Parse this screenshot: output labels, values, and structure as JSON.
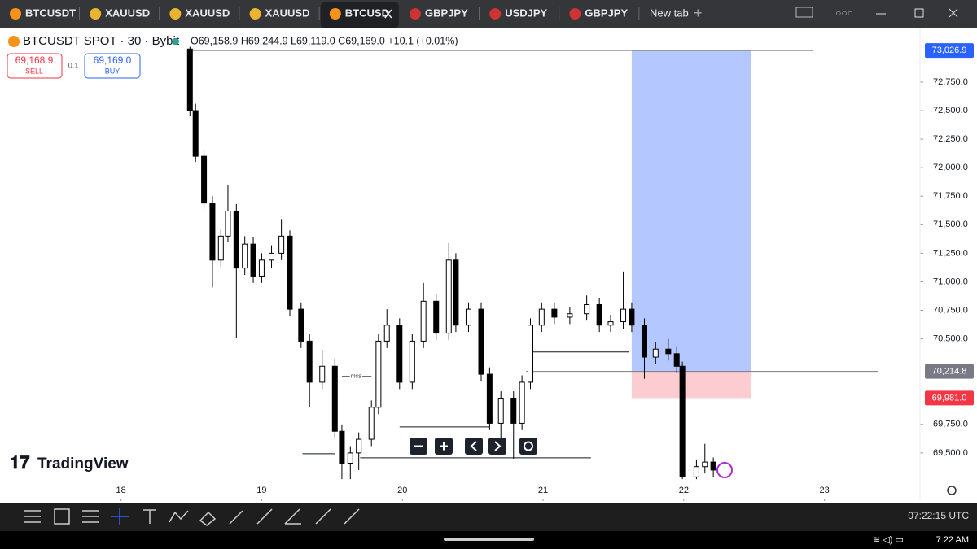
{
  "tabs": [
    {
      "label": "BTCUSDT"
    },
    {
      "label": "XAUUSD"
    },
    {
      "label": "XAUUSD"
    },
    {
      "label": "XAUUSD"
    },
    {
      "label": "BTCUSD"
    },
    {
      "label": "GBPJPY"
    },
    {
      "label": "USDJPY"
    },
    {
      "label": "GBPJPY"
    }
  ],
  "new_tab": "New tab",
  "header": {
    "symbol": "BTCUSDT SPOT · 30 · Bybit",
    "ohlc": "O69,158.9 H69,244.9 L69,119.0 C69,169.0 +10.1 (+0.01%)",
    "sell_price": "69,168.9",
    "sell": "SELL",
    "spread": "0.1",
    "buy_price": "69,169.0",
    "buy": "BUY"
  },
  "logo": "TradingView",
  "clock_utc": "07:22:15 UTC",
  "status_time": "7:22 AM",
  "chart_data": {
    "type": "candlestick",
    "xlim": [
      17.14,
      23.65
    ],
    "ylim": [
      69100,
      73213
    ],
    "xticks": [
      18,
      19,
      20,
      21,
      22,
      23
    ],
    "yticks": [
      {
        "value": 69500,
        "label": "69,500.0"
      },
      {
        "value": 69750,
        "label": "69,750.0"
      },
      {
        "value": 70500,
        "label": "70,500.0"
      },
      {
        "value": 70750,
        "label": "70,750.0"
      },
      {
        "value": 71000,
        "label": "71,000.0"
      },
      {
        "value": 71250,
        "label": "71,250.0"
      },
      {
        "value": 71500,
        "label": "71,500.0"
      },
      {
        "value": 71750,
        "label": "71,750.0"
      },
      {
        "value": 72000,
        "label": "72,000.0"
      },
      {
        "value": 72250,
        "label": "72,250.0"
      },
      {
        "value": 72500,
        "label": "72,500.0"
      },
      {
        "value": 72750,
        "label": "72,750.0"
      }
    ],
    "up_color": "#ffffff",
    "down_color": "#000000",
    "x": [
      18.49,
      18.53,
      18.59,
      18.65,
      18.71,
      18.76,
      18.82,
      18.88,
      18.94,
      19.0,
      19.07,
      19.14,
      19.2,
      19.28,
      19.34,
      19.43,
      19.52,
      19.57,
      19.63,
      19.69,
      19.78,
      19.83,
      19.89,
      19.98,
      20.07,
      20.15,
      20.24,
      20.33,
      20.38,
      20.47,
      20.56,
      20.62,
      20.7,
      20.79,
      20.85,
      20.91,
      20.99,
      21.08,
      21.19,
      21.31,
      21.4,
      21.48,
      21.57,
      21.63,
      21.72,
      21.8,
      21.89,
      21.95,
      21.99,
      22.09,
      22.15,
      22.21
    ],
    "open": [
      73040,
      72500,
      72100,
      71690,
      71190,
      71400,
      71620,
      71120,
      71330,
      71050,
      71190,
      71250,
      71400,
      70760,
      70480,
      70120,
      70260,
      69690,
      69410,
      69500,
      69620,
      69900,
      70480,
      70620,
      70120,
      70480,
      70830,
      70550,
      71190,
      70620,
      70760,
      70190,
      69760,
      69980,
      69760,
      70120,
      70620,
      70760,
      70690,
      70720,
      70800,
      70620,
      70650,
      70760,
      70620,
      70340,
      70410,
      70370,
      70260,
      69290,
      69380,
      69420
    ],
    "high": [
      73060,
      72560,
      72150,
      71750,
      71460,
      71850,
      71680,
      71400,
      71390,
      71250,
      71320,
      71550,
      71450,
      70820,
      70540,
      70400,
      70320,
      69750,
      69560,
      69680,
      69960,
      70540,
      70760,
      70680,
      70540,
      70990,
      70890,
      71340,
      71250,
      70820,
      70820,
      70250,
      70040,
      70040,
      70180,
      70680,
      70820,
      70820,
      70780,
      70880,
      70860,
      70710,
      71090,
      70820,
      70680,
      70470,
      70500,
      70430,
      70300,
      69440,
      69580,
      69460
    ],
    "low": [
      72450,
      72050,
      71640,
      70950,
      71130,
      71350,
      70510,
      71060,
      70990,
      70990,
      71120,
      71190,
      70700,
      70420,
      69900,
      70060,
      69630,
      69270,
      69270,
      69350,
      69560,
      69840,
      70420,
      70060,
      70060,
      70420,
      70490,
      70490,
      70560,
      70560,
      70130,
      69700,
      69480,
      69450,
      69700,
      70060,
      70560,
      70630,
      70630,
      70660,
      70560,
      70560,
      70590,
      70560,
      70150,
      70280,
      70310,
      70200,
      69270,
      69270,
      69320,
      69290
    ],
    "close": [
      72500,
      72100,
      71690,
      71190,
      71400,
      71620,
      71120,
      71330,
      71050,
      71190,
      71250,
      71400,
      70760,
      70480,
      70120,
      70260,
      69690,
      69410,
      69500,
      69620,
      69900,
      70480,
      70620,
      70120,
      70480,
      70830,
      70550,
      71190,
      70620,
      70760,
      70190,
      69760,
      69980,
      69760,
      70120,
      70620,
      70760,
      70690,
      70720,
      70800,
      70620,
      70650,
      70760,
      70620,
      70340,
      70410,
      70370,
      70260,
      69290,
      69380,
      69420,
      69350
    ],
    "levels": [
      {
        "price": 73026.9,
        "from": 18.49,
        "to": 22.92
      },
      {
        "price": 70214.8,
        "from": 20.88,
        "to": 23.38
      },
      {
        "price": 70385,
        "from": 20.89,
        "to": 21.61
      },
      {
        "price": 69728,
        "from": 19.98,
        "to": 20.62
      },
      {
        "price": 69493,
        "from": 19.29,
        "to": 19.52
      },
      {
        "price": 69457,
        "from": 19.7,
        "to": 21.34
      },
      {
        "price": 70170,
        "from": 19.57,
        "to": 19.78
      }
    ],
    "annotation": {
      "text": "mss",
      "x": 19.67,
      "price": 70170
    },
    "position": {
      "from": 21.63,
      "to": 22.48,
      "target": {
        "value": 73026.9,
        "label": "73,026.9"
      },
      "entry": {
        "value": 70214.8,
        "label": "70,214.8"
      },
      "stop": {
        "value": 69981.0,
        "label": "69,981.0"
      }
    }
  }
}
